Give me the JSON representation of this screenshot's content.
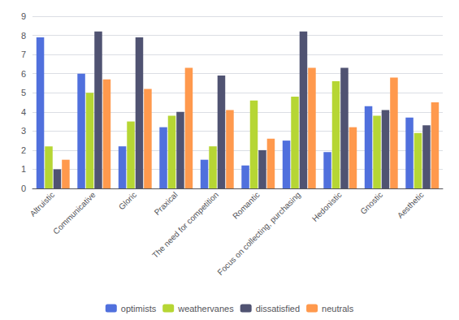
{
  "chart_data": {
    "type": "bar",
    "categories": [
      "Altruistic",
      "Communicative",
      "Gloric",
      "Praxical",
      "The need for competition",
      "Romantic",
      "Focus on collecting, purchasing",
      "Hedonistic",
      "Gnostic",
      "Aesthetic"
    ],
    "series": [
      {
        "name": "optimists",
        "values": [
          7.9,
          6.0,
          2.2,
          3.2,
          1.5,
          1.2,
          2.5,
          1.9,
          4.3,
          3.7
        ]
      },
      {
        "name": "weathervanes",
        "values": [
          2.2,
          5.0,
          3.5,
          3.8,
          2.2,
          4.6,
          4.8,
          5.6,
          3.8,
          2.9
        ]
      },
      {
        "name": "dissatisfied",
        "values": [
          1.0,
          8.2,
          7.9,
          4.0,
          5.9,
          2.0,
          8.2,
          6.3,
          4.1,
          3.3
        ]
      },
      {
        "name": "neutrals",
        "values": [
          1.5,
          5.7,
          5.2,
          6.3,
          4.1,
          2.6,
          6.3,
          3.2,
          5.8,
          4.5
        ]
      }
    ],
    "ylim": [
      0,
      9
    ],
    "yticks": [
      0,
      1,
      2,
      3,
      4,
      5,
      6,
      7,
      8,
      9
    ],
    "grid": true,
    "legend": "bottom"
  }
}
